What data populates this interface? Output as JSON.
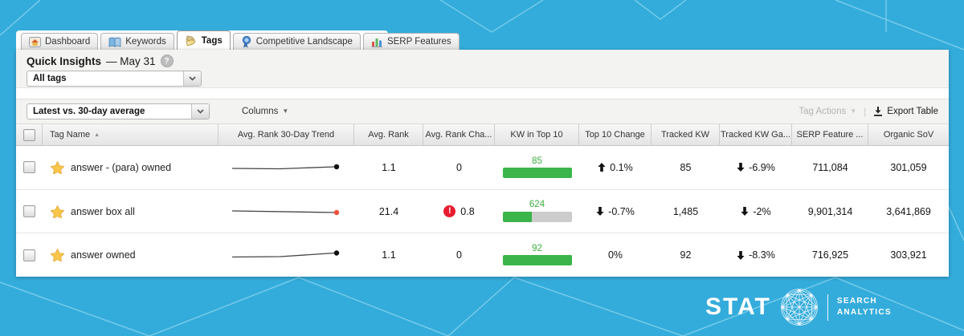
{
  "colors": {
    "background_blue": "#34acdb",
    "pattern_line": "#8ad4ee",
    "bar_green": "#3bb54a",
    "bar_track_gray": "#cccccc",
    "kw_label_green": "#3cb043",
    "alert_red": "#e81c30",
    "star_yellow": "#f7c64a",
    "trend_dot_black": "#111111",
    "trend_dot_red": "#f0503c"
  },
  "icons": {
    "help_glyph": "?",
    "alert_glyph": "!",
    "sort_asc_glyph": "▲",
    "caret_glyph": "▼",
    "toolbar_separator": "|"
  },
  "tabs": [
    {
      "label": "Dashboard",
      "active": false
    },
    {
      "label": "Keywords",
      "active": false
    },
    {
      "label": "Tags",
      "active": true
    },
    {
      "label": "Competitive Landscape",
      "active": false
    },
    {
      "label": "SERP Features",
      "active": false
    }
  ],
  "quick_insights": {
    "title": "Quick Insights",
    "date_suffix": "— May 31",
    "tag_filter_value": "All tags"
  },
  "toolbar": {
    "comparison_value": "Latest vs. 30-day average",
    "columns_label": "Columns",
    "tag_actions_label": "Tag Actions",
    "export_label": "Export Table"
  },
  "table": {
    "sort_column": "Tag Name",
    "sort_direction": "ascending",
    "columns": [
      "Tag Name",
      "Avg. Rank 30-Day Trend",
      "Avg. Rank",
      "Avg. Rank Cha...",
      "KW in Top 10",
      "Top 10 Change",
      "Tracked KW",
      "Tracked KW Ga...",
      "SERP Feature ...",
      "Organic SoV"
    ],
    "rows": [
      {
        "tag": "answer - (para) owned",
        "avg_rank": "1.1",
        "avg_rank_change": "0",
        "avg_rank_alert": false,
        "kw_in_top10": "85",
        "kw_bar_pct": 100,
        "top10_change": "0.1%",
        "top10_dir": "up",
        "tracked_kw": "85",
        "tracked_kw_change": "-6.9%",
        "tracked_kw_dir": "down",
        "serp_feature": "711,084",
        "organic_sov": "301,059",
        "trend_dot_color": "#111111"
      },
      {
        "tag": "answer box all",
        "avg_rank": "21.4",
        "avg_rank_change": "0.8",
        "avg_rank_alert": true,
        "kw_in_top10": "624",
        "kw_bar_pct": 42,
        "top10_change": "-0.7%",
        "top10_dir": "down",
        "tracked_kw": "1,485",
        "tracked_kw_change": "-2%",
        "tracked_kw_dir": "down",
        "serp_feature": "9,901,314",
        "organic_sov": "3,641,869",
        "trend_dot_color": "#f0503c"
      },
      {
        "tag": "answer owned",
        "avg_rank": "1.1",
        "avg_rank_change": "0",
        "avg_rank_alert": false,
        "kw_in_top10": "92",
        "kw_bar_pct": 100,
        "top10_change": "0%",
        "top10_dir": "none",
        "tracked_kw": "92",
        "tracked_kw_change": "-8.3%",
        "tracked_kw_dir": "down",
        "serp_feature": "716,925",
        "organic_sov": "303,921",
        "trend_dot_color": "#111111"
      }
    ]
  },
  "logo": {
    "brand": "STAT",
    "tagline_line1": "SEARCH",
    "tagline_line2": "ANALYTICS"
  }
}
